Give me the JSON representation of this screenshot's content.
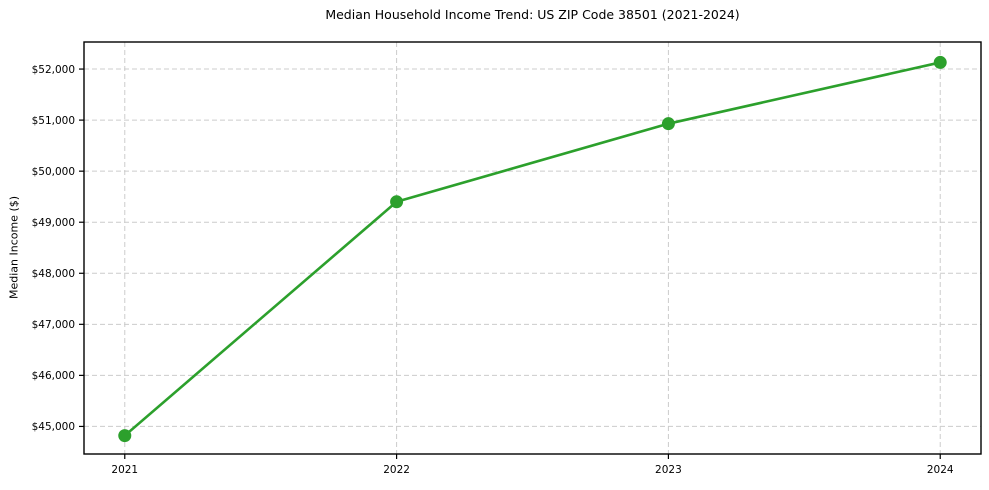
{
  "chart_data": {
    "type": "line",
    "title": "Median Household Income Trend: US ZIP Code 38501 (2021-2024)",
    "ylabel": "Median Income ($)",
    "xlabel": "",
    "x": [
      2021,
      2022,
      2023,
      2024
    ],
    "x_tick_labels": [
      "2021",
      "2022",
      "2023",
      "2024"
    ],
    "series": [
      {
        "name": "Median Household Income",
        "values": [
          44820,
          49400,
          50930,
          52130
        ]
      }
    ],
    "y_ticks": [
      45000,
      46000,
      47000,
      48000,
      49000,
      50000,
      51000,
      52000
    ],
    "y_tick_labels": [
      "$45,000",
      "$46,000",
      "$47,000",
      "$48,000",
      "$49,000",
      "$50,000",
      "$51,000",
      "$52,000"
    ],
    "xlim": [
      2020.85,
      2024.15
    ],
    "ylim": [
      44460,
      52530
    ],
    "grid": true,
    "legend": false,
    "marker": "circle",
    "colors": {
      "line": "#2ca02c",
      "marker": "#2ca02c",
      "grid": "#cccccc",
      "spine": "#000000",
      "text": "#000000",
      "background": "#ffffff"
    }
  }
}
